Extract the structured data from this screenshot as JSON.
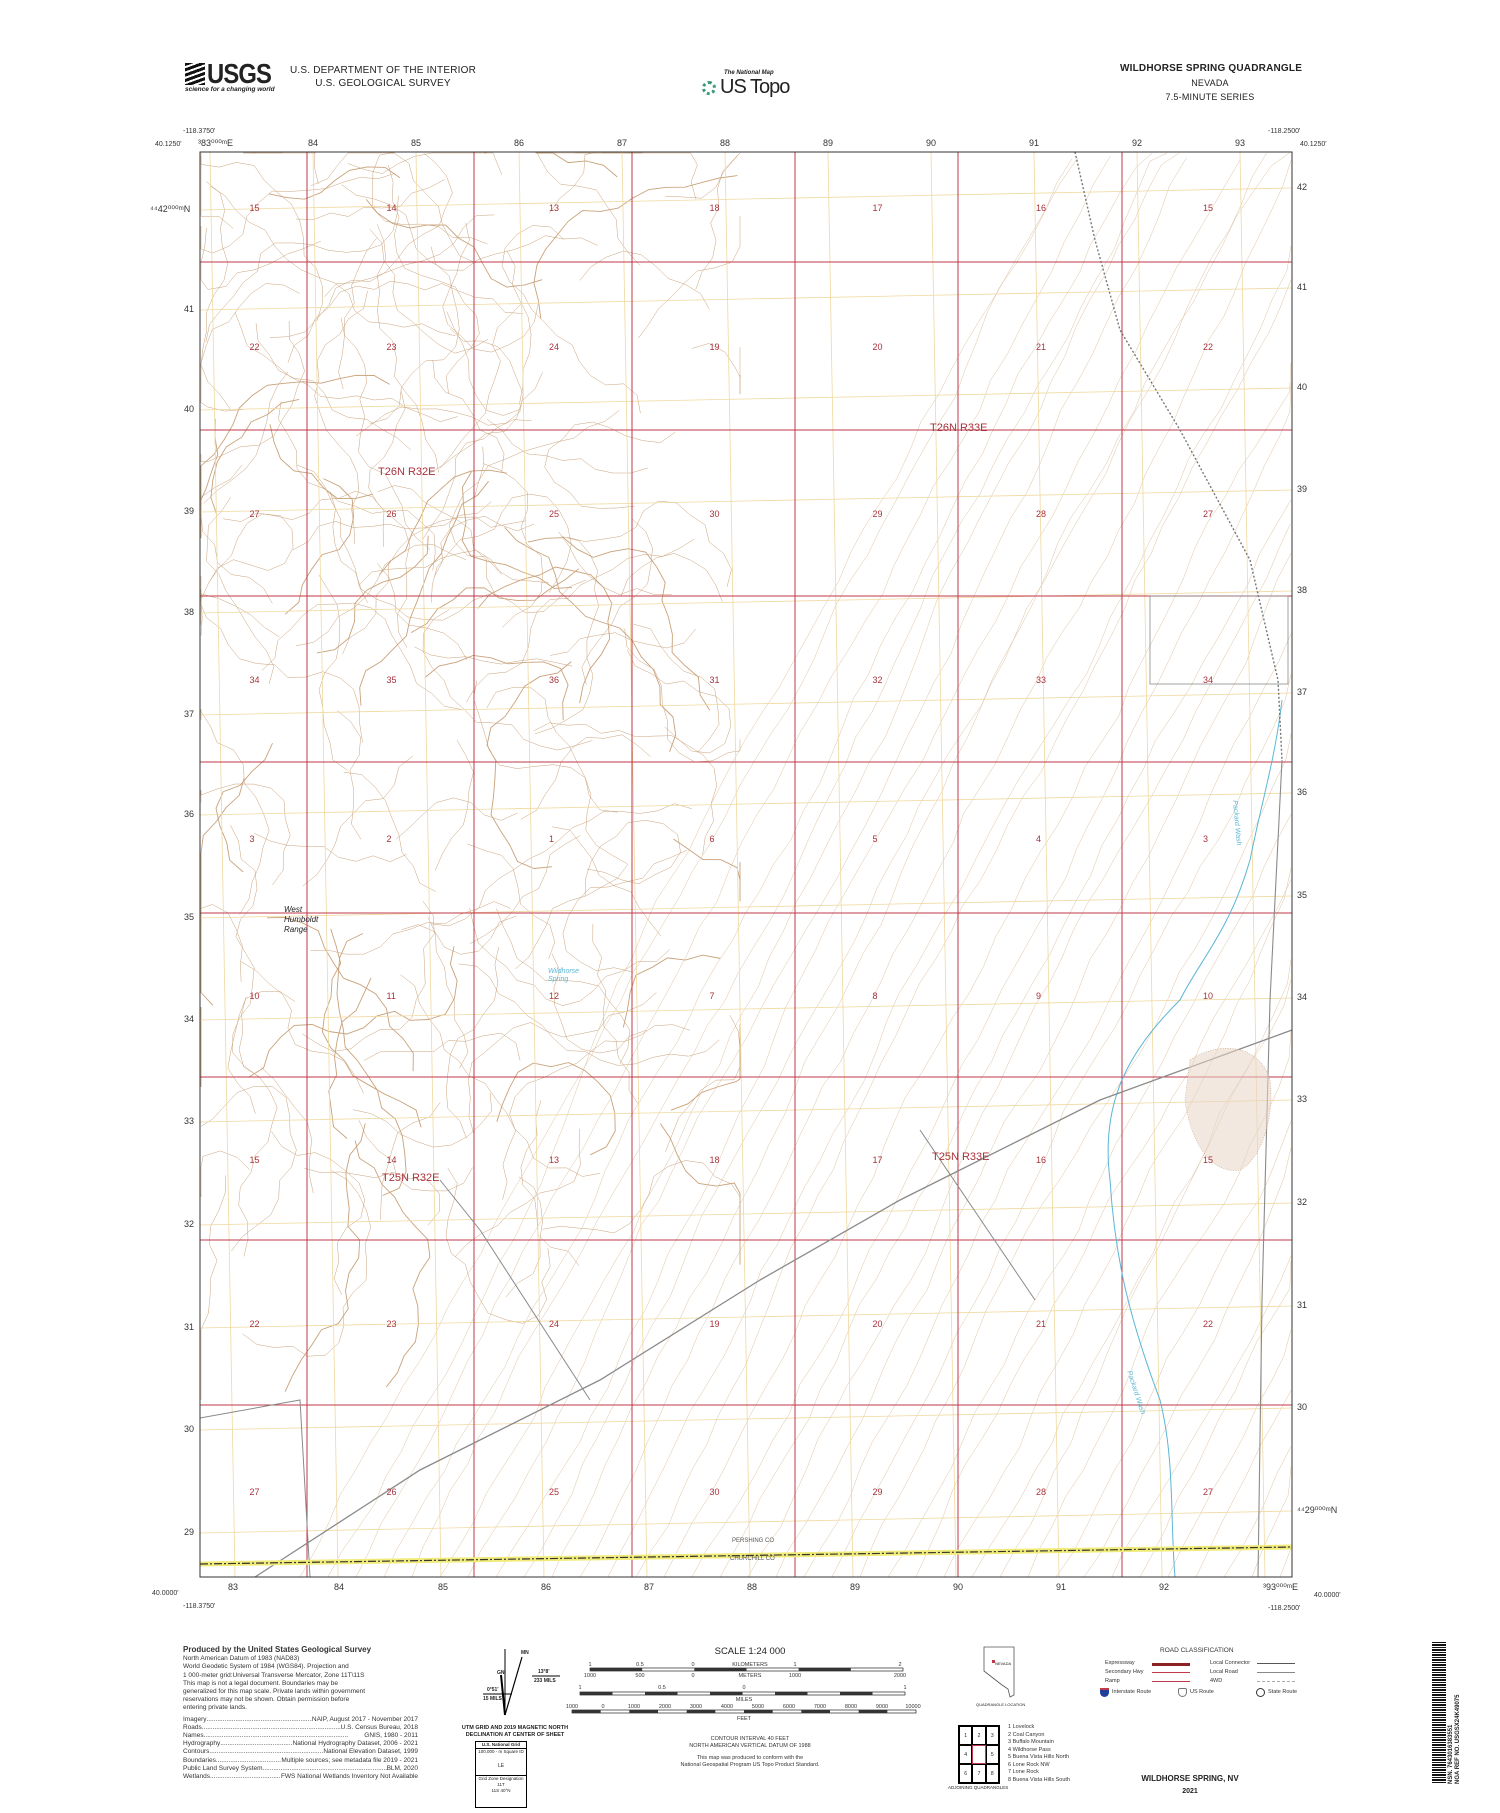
{
  "header": {
    "usgs_logo_text": "USGS",
    "usgs_tagline": "science for a changing world",
    "department": "U.S. DEPARTMENT OF THE INTERIOR",
    "survey": "U.S. GEOLOGICAL SURVEY",
    "national_map": "The National Map",
    "us_topo": "US Topo",
    "quad_title": "WILDHORSE SPRING QUADRANGLE",
    "state": "NEVADA",
    "series": "7.5-MINUTE SERIES"
  },
  "corners": {
    "nw_lon": "-118.3750'",
    "nw_lat": "40.1250'",
    "ne_lon": "-118.2500'",
    "ne_lat": "40.1250'",
    "sw_lon": "-118.3750'",
    "sw_lat": "40.0000'",
    "se_lon": "-118.2500'",
    "se_lat": "40.0000'"
  },
  "grid": {
    "top_eastings": [
      "³83⁰⁰⁰ᵐE",
      "84",
      "85",
      "86",
      "87",
      "88",
      "89",
      "90",
      "91",
      "92",
      "93"
    ],
    "bottom_eastings": [
      "83",
      "84",
      "85",
      "86",
      "87",
      "88",
      "89",
      "90",
      "91",
      "92",
      "³93⁰⁰⁰ᵐE"
    ],
    "left_northings": [
      "⁴⁴42⁰⁰⁰ᵐN",
      "41",
      "40",
      "39",
      "38",
      "37",
      "36",
      "35",
      "34",
      "33",
      "32",
      "31",
      "30",
      "29"
    ],
    "right_northings": [
      "42",
      "41",
      "40",
      "39",
      "38",
      "37",
      "36",
      "35",
      "34",
      "33",
      "32",
      "31",
      "30",
      "⁴⁴29⁰⁰⁰ᵐN"
    ]
  },
  "sections": [
    [
      "15",
      "14",
      "13",
      "18",
      "17",
      "16",
      "15"
    ],
    [
      "22",
      "23",
      "24",
      "19",
      "20",
      "21",
      "22"
    ],
    [
      "27",
      "26",
      "25",
      "30",
      "29",
      "28",
      "27"
    ],
    [
      "34",
      "35",
      "36",
      "31",
      "32",
      "33",
      "34"
    ],
    [
      "3",
      "2",
      "1",
      "6",
      "5",
      "4",
      "3"
    ],
    [
      "10",
      "11",
      "12",
      "7",
      "8",
      "9",
      "10"
    ],
    [
      "15",
      "14",
      "13",
      "18",
      "17",
      "16",
      "15"
    ],
    [
      "22",
      "23",
      "24",
      "19",
      "20",
      "21",
      "22"
    ],
    [
      "27",
      "26",
      "25",
      "30",
      "29",
      "28",
      "27"
    ]
  ],
  "townships": [
    "T26N R32E",
    "T26N R33E",
    "T25N R32E",
    "T25N R33E"
  ],
  "features": {
    "range_name": [
      "West",
      "Humboldt",
      "Range"
    ],
    "spring_name": [
      "Wildhorse",
      "Spring"
    ],
    "wash_name": "Packard Wash",
    "county_north": "PERSHING CO",
    "county_south": "CHURCHILL CO"
  },
  "colors": {
    "section_line": "#c0394b",
    "contour": "#c9a27a",
    "utm_grid": "#f0d9a0",
    "water": "#5bb6d6",
    "road": "#8a8a8a",
    "county": "#e8e070"
  },
  "credits": {
    "title": "Produced by the United States Geological Survey",
    "lines": [
      "North American Datum of 1983 (NAD83)",
      "World Geodetic System of 1984 (WGS84). Projection and",
      "1 000-meter grid:Universal Transverse Mercator, Zone 11T\\11S",
      "This map is not a legal document. Boundaries may be",
      "generalized for this map scale. Private lands within government",
      "reservations may not be shown. Obtain permission before",
      "entering private lands."
    ],
    "sources": [
      {
        "name": "Imagery",
        "value": "NAIP, August 2017 - November 2017"
      },
      {
        "name": "Roads",
        "value": "U.S. Census Bureau, 2018"
      },
      {
        "name": "Names",
        "value": "GNIS, 1980 - 2011"
      },
      {
        "name": "Hydrography",
        "value": "National Hydrography Dataset, 2006 - 2021"
      },
      {
        "name": "Contours",
        "value": "National Elevation Dataset, 1999"
      },
      {
        "name": "Boundaries",
        "value": "Multiple sources; see metadata file 2019 - 2021"
      },
      {
        "name": "Public Land Survey System",
        "value": "BLM, 2020"
      },
      {
        "name": "Wetlands",
        "value": "FWS National Wetlands Inventory Not Available"
      }
    ]
  },
  "declination": {
    "mn": "MN",
    "gn": "GN",
    "left_angle": "0°51'",
    "left_mils": "15 MILS",
    "right_angle": "13°8'",
    "right_mils": "233 MILS",
    "caption1": "UTM GRID AND 2019 MAGNETIC NORTH",
    "caption2": "DECLINATION AT CENTER OF SHEET",
    "grid_box_title": "U.S. National Grid",
    "grid_box_sub": "100,000 - m Square ID",
    "square_id": "LE",
    "gzd_label": "Grid Zone Designation",
    "gzd_top": "11T",
    "gzd_bottom": "11S",
    "gzd_lat": "40°N"
  },
  "scale": {
    "title": "SCALE 1:24 000",
    "km_labels": [
      "1",
      "0.5",
      "0",
      "1",
      "2"
    ],
    "km_unit": "KILOMETERS",
    "m_labels": [
      "1000",
      "500",
      "0",
      "1000",
      "2000"
    ],
    "m_unit": "METERS",
    "mi_labels": [
      "1",
      "0.5",
      "0",
      "1"
    ],
    "mi_unit": "MILES",
    "ft_labels": [
      "1000",
      "0",
      "1000",
      "2000",
      "3000",
      "4000",
      "5000",
      "6000",
      "7000",
      "8000",
      "9000",
      "10000"
    ],
    "ft_unit": "FEET",
    "contour1": "CONTOUR INTERVAL 40 FEET",
    "contour2": "NORTH AMERICAN VERTICAL DATUM OF 1988",
    "conform1": "This map was produced to conform with the",
    "conform2": "National Geospatial Program US Topo Product Standard."
  },
  "location": {
    "state": "NEVADA",
    "caption": "QUADRANGLE LOCATION"
  },
  "adjoining": {
    "cells": [
      "1",
      "2",
      "3",
      "4",
      "",
      "5",
      "6",
      "7",
      "8"
    ],
    "caption": "ADJOINING QUADRANGLES",
    "names": [
      "1 Lovelock",
      "2 Coal Canyon",
      "3 Buffalo Mountain",
      "4 Wildhorse Pass",
      "5 Buena Vista Hills North",
      "6 Lone Rock NW",
      "7 Lone Rock",
      "8 Buena Vista Hills South"
    ]
  },
  "roads": {
    "title": "ROAD CLASSIFICATION",
    "items": [
      "Expressway",
      "Secondary Hwy",
      "Ramp",
      "Local Connector",
      "Local Road",
      "4WD"
    ],
    "routes": [
      "Interstate Route",
      "US Route",
      "State Route"
    ]
  },
  "footer": {
    "name": "WILDHORSE SPRING,  NV",
    "year": "2021"
  },
  "barcode": {
    "nsn": "NSN.  7643016383551",
    "ngaref": "NGA REF NO. USGSX24K49075"
  }
}
